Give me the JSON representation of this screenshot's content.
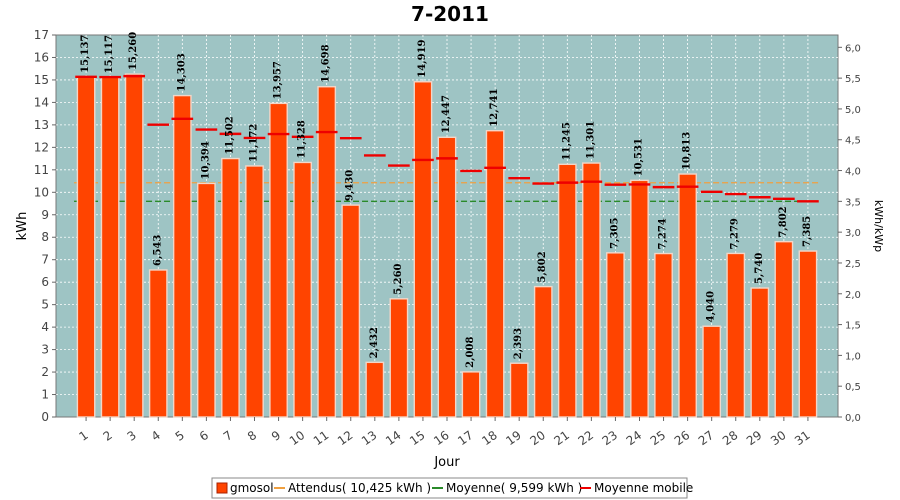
{
  "chart_data": {
    "type": "bar",
    "title": "7-2011",
    "xlabel": "Jour",
    "ylabel": "kWh",
    "ylabel_right": "kWh/kWp",
    "ylim": [
      0,
      17
    ],
    "ylim_right": [
      0,
      6.2
    ],
    "yticks": [
      0,
      1,
      2,
      3,
      4,
      5,
      6,
      7,
      8,
      9,
      10,
      11,
      12,
      13,
      14,
      15,
      16,
      17
    ],
    "yticks_right": [
      "0,0",
      "0,5",
      "1,0",
      "1,5",
      "2,0",
      "2,5",
      "3,0",
      "3,5",
      "4,0",
      "4,5",
      "5,0",
      "5,5",
      "6,0"
    ],
    "yticks_right_values": [
      0,
      0.5,
      1,
      1.5,
      2,
      2.5,
      3,
      3.5,
      4,
      4.5,
      5,
      5.5,
      6
    ],
    "grid": true,
    "legend_position": "bottom",
    "categories": [
      "1",
      "2",
      "3",
      "4",
      "5",
      "6",
      "7",
      "8",
      "9",
      "10",
      "11",
      "12",
      "13",
      "14",
      "15",
      "16",
      "17",
      "18",
      "19",
      "20",
      "21",
      "22",
      "23",
      "24",
      "25",
      "26",
      "27",
      "28",
      "29",
      "30",
      "31"
    ],
    "series": [
      {
        "name": "gmosol",
        "kind": "bar",
        "color": "#ff4400",
        "values": [
          15.137,
          15.117,
          15.26,
          6.543,
          14.303,
          10.394,
          11.502,
          11.172,
          13.957,
          11.328,
          14.698,
          9.43,
          2.432,
          5.26,
          14.919,
          12.447,
          2.008,
          12.741,
          2.393,
          5.802,
          11.245,
          11.301,
          7.305,
          10.531,
          7.274,
          10.813,
          4.04,
          7.279,
          5.74,
          7.802,
          7.385
        ],
        "labels": [
          "15,137",
          "15,117",
          "15,260",
          "6,543",
          "14,303",
          "10,394",
          "11,502",
          "11,172",
          "13,957",
          "11,328",
          "14,698",
          "9,430",
          "2,432",
          "5,260",
          "14,919",
          "12,447",
          "2,008",
          "12,741",
          "2,393",
          "5,802",
          "11,245",
          "11,301",
          "7,305",
          "10,531",
          "7,274",
          "10,813",
          "4,040",
          "7,279",
          "5,740",
          "7,802",
          "7,385"
        ]
      },
      {
        "name": "Attendus( 10,425 kWh )",
        "kind": "hline",
        "color": "#f0a040",
        "value": 10.425
      },
      {
        "name": "Moyenne( 9,599 kWh )",
        "kind": "hline",
        "color": "#2a8a2a",
        "value": 9.599
      },
      {
        "name": "Moyenne mobile",
        "kind": "marker",
        "color": "#ee0000",
        "values": [
          15.14,
          15.13,
          15.17,
          13.01,
          13.27,
          12.79,
          12.6,
          12.42,
          12.59,
          12.47,
          12.68,
          12.41,
          11.64,
          11.19,
          11.44,
          11.51,
          10.95,
          11.09,
          10.63,
          10.39,
          10.43,
          10.47,
          10.34,
          10.35,
          10.23,
          10.25,
          10.02,
          9.92,
          9.78,
          9.71,
          9.6
        ]
      }
    ]
  }
}
